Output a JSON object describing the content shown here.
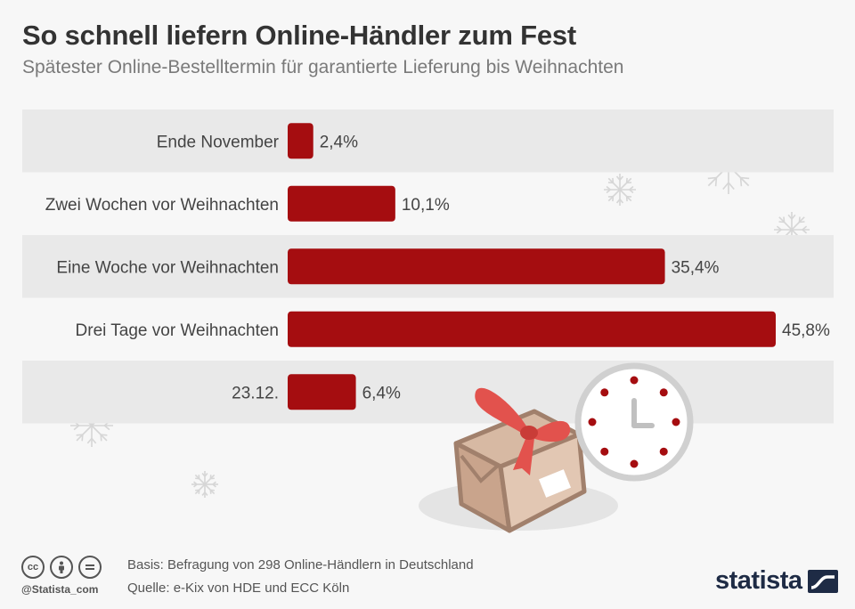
{
  "header": {
    "title": "So schnell liefern Online-Händler zum Fest",
    "subtitle": "Spätester Online-Bestelltermin für garantierte Lieferung bis Weihnachten"
  },
  "chart_data": {
    "type": "bar",
    "orientation": "horizontal",
    "categories": [
      "Ende November",
      "Zwei Wochen vor Weihnachten",
      "Eine Woche vor Weihnachten",
      "Drei Tage vor Weihnachten",
      "23.12."
    ],
    "values": [
      2.4,
      10.1,
      35.4,
      45.8,
      6.4
    ],
    "value_labels": [
      "2,4%",
      "10,1%",
      "35,4%",
      "45,8%",
      "6,4%"
    ],
    "xlim": [
      0,
      45.8
    ],
    "grid": false,
    "bar_color": "#a50d10",
    "row_band_color": "#e9e9e9"
  },
  "footer": {
    "basis": "Basis: Befragung von 298 Online-Händlern in Deutschland",
    "source": "Quelle: e-Kix von HDE und ECC Köln",
    "handle": "@Statista_com",
    "brand": "statista",
    "license_icons": [
      "cc-icon",
      "by-icon",
      "nd-icon"
    ]
  },
  "decoration": {
    "icons": [
      "snowflake-icon",
      "gift-package-icon",
      "clock-icon"
    ]
  }
}
